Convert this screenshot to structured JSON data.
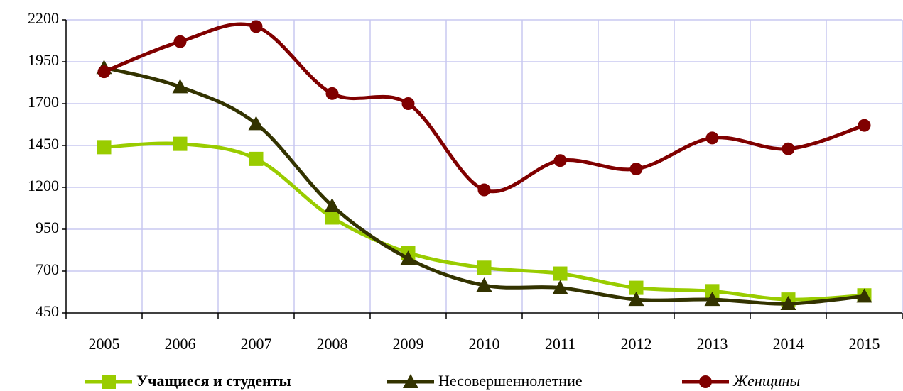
{
  "chart_data": {
    "type": "line",
    "categories": [
      "2005",
      "2006",
      "2007",
      "2008",
      "2009",
      "2010",
      "2011",
      "2012",
      "2013",
      "2014",
      "2015"
    ],
    "series": [
      {
        "name": "Учащиеся и студенты",
        "color": "#99cc00",
        "marker": "square",
        "values": [
          1440,
          1460,
          1370,
          1020,
          810,
          720,
          685,
          600,
          580,
          530,
          555
        ]
      },
      {
        "name": "Несовершеннолетние",
        "color": "#333300",
        "marker": "triangle",
        "values": [
          1915,
          1800,
          1580,
          1090,
          775,
          615,
          600,
          530,
          530,
          505,
          550
        ]
      },
      {
        "name": "Женщины",
        "color": "#800000",
        "marker": "circle",
        "values": [
          1890,
          2070,
          2160,
          1760,
          1700,
          1185,
          1360,
          1310,
          1495,
          1430,
          1570
        ]
      }
    ],
    "ylim": [
      450,
      2200
    ],
    "yticks": [
      450,
      700,
      950,
      1200,
      1450,
      1700,
      1950,
      2200
    ],
    "grid": true,
    "smooth": true,
    "legend": "bottom"
  }
}
